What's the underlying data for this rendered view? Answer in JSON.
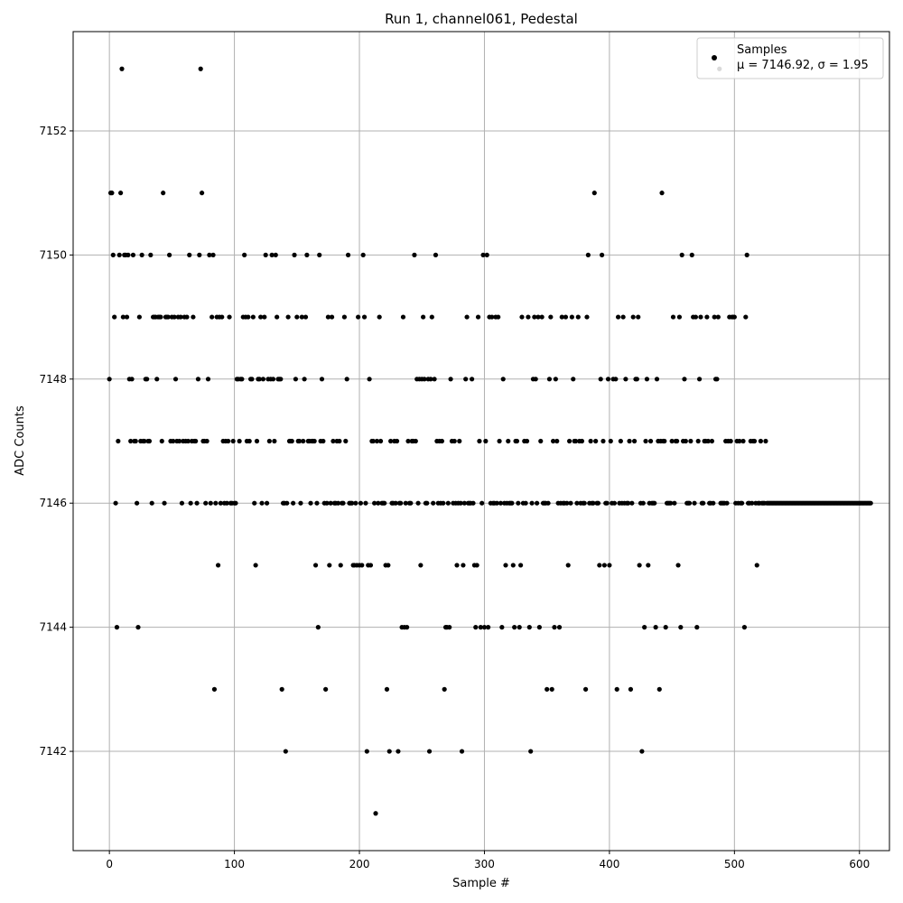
{
  "chart_data": {
    "type": "scatter",
    "title": "Run 1, channel061, Pedestal",
    "xlabel": "Sample #",
    "ylabel": "ADC Counts",
    "xlim": [
      -29,
      624
    ],
    "ylim": [
      7140.4,
      7153.6
    ],
    "x_ticks": [
      0,
      100,
      200,
      300,
      400,
      500,
      600
    ],
    "y_ticks": [
      7142,
      7144,
      7146,
      7148,
      7150,
      7152
    ],
    "grid": true,
    "legend_position": "top-right",
    "marker_color": "#000000",
    "grid_color": "#b0b0b0",
    "legend": {
      "series_name": "Samples",
      "stats_text": "μ = 7146.92, σ = 1.95"
    },
    "series": [
      {
        "name": "Samples",
        "values": [
          7148,
          7151,
          7151,
          7150,
          7149,
          7146,
          7144,
          7147,
          7150,
          7151,
          7153,
          7149,
          7150,
          7150,
          7149,
          7150,
          7148,
          7147,
          7148,
          7150,
          7147,
          7147,
          7146,
          7144,
          7149,
          7147,
          7150,
          7147,
          7147,
          7148,
          7148,
          7147,
          7147,
          7150,
          7146,
          7149,
          7149,
          7149,
          7148,
          7149,
          7149,
          7149,
          7147,
          7151,
          7146,
          7149,
          7149,
          7149,
          7150,
          7147,
          7149,
          7147,
          7149,
          7148,
          7147,
          7149,
          7147,
          7149,
          7146,
          7147,
          7149,
          7147,
          7149,
          7147,
          7150,
          7146,
          7147,
          7149,
          7147,
          7147,
          7146,
          7148,
          7150,
          7153,
          7151,
          7147,
          7147,
          7146,
          7147,
          7148,
          7150,
          7146,
          7149,
          7150,
          7143,
          7146,
          7149,
          7145,
          7149,
          7146,
          7149,
          7147,
          7146,
          7147,
          7146,
          7147,
          7149,
          7146,
          7146,
          7147,
          7146,
          7146,
          7148,
          7148,
          7147,
          7148,
          7148,
          7149,
          7150,
          7149,
          7147,
          7149,
          7147,
          7148,
          7148,
          7149,
          7146,
          7145,
          7147,
          7148,
          7148,
          7149,
          7146,
          7148,
          7149,
          7150,
          7146,
          7148,
          7147,
          7148,
          7150,
          7148,
          7147,
          7150,
          7149,
          7148,
          7148,
          7148,
          7143,
          7146,
          7146,
          7142,
          7146,
          7149,
          7147,
          7147,
          7147,
          7146,
          7150,
          7148,
          7149,
          7147,
          7147,
          7146,
          7149,
          7147,
          7148,
          7149,
          7150,
          7147,
          7147,
          7146,
          7147,
          7147,
          7147,
          7145,
          7146,
          7144,
          7150,
          7147,
          7148,
          7147,
          7146,
          7143,
          7146,
          7149,
          7145,
          7146,
          7149,
          7147,
          7146,
          7146,
          7147,
          7146,
          7147,
          7145,
          7146,
          7146,
          7149,
          7147,
          7148,
          7150,
          7146,
          7146,
          7146,
          7145,
          7145,
          7146,
          7145,
          7149,
          7145,
          7146,
          7145,
          7150,
          7149,
          7146,
          7142,
          7145,
          7148,
          7145,
          7147,
          7147,
          7146,
          7141,
          7147,
          7146,
          7149,
          7147,
          7146,
          7146,
          7146,
          7145,
          7143,
          7145,
          7142,
          7147,
          7146,
          7146,
          7147,
          7146,
          7147,
          7142,
          7146,
          7146,
          7144,
          7149,
          7144,
          7146,
          7144,
          7147,
          7146,
          7146,
          7147,
          7147,
          7150,
          7147,
          7148,
          7146,
          7148,
          7145,
          7148,
          7149,
          7148,
          7146,
          7146,
          7148,
          7142,
          7148,
          7149,
          7146,
          7148,
          7150,
          7147,
          7146,
          7147,
          7146,
          7147,
          7146,
          7143,
          7144,
          7144,
          7146,
          7144,
          7148,
          7147,
          7146,
          7147,
          7146,
          7145,
          7146,
          7147,
          7146,
          7142,
          7145,
          7146,
          7148,
          7149,
          7146,
          7146,
          7146,
          7148,
          7146,
          7145,
          7144,
          7145,
          7149,
          7147,
          7144,
          7146,
          7150,
          7144,
          7147,
          7150,
          7144,
          7149,
          7146,
          7149,
          7146,
          7146,
          7149,
          7146,
          7149,
          7147,
          7146,
          7144,
          7148,
          7146,
          7145,
          7146,
          7147,
          7146,
          7146,
          7146,
          7145,
          7144,
          7147,
          7147,
          7146,
          7144,
          7145,
          7149,
          7146,
          7147,
          7146,
          7147,
          7149,
          7144,
          7142,
          7146,
          7148,
          7149,
          7148,
          7146,
          7149,
          7144,
          7147,
          7149,
          7146,
          7146,
          7146,
          7143,
          7146,
          7148,
          7149,
          7143,
          7147,
          7144,
          7148,
          7147,
          7146,
          7144,
          7146,
          7149,
          7146,
          7146,
          7149,
          7146,
          7145,
          7147,
          7146,
          7149,
          7148,
          7147,
          7147,
          7146,
          7149,
          7147,
          7146,
          7147,
          7146,
          7146,
          7143,
          7149,
          7150,
          7146,
          7147,
          7146,
          7146,
          7151,
          7147,
          7146,
          7146,
          7145,
          7148,
          7150,
          7147,
          7145,
          7146,
          7146,
          7148,
          7145,
          7147,
          7146,
          7148,
          7146,
          7148,
          7143,
          7149,
          7146,
          7147,
          7146,
          7149,
          7146,
          7148,
          7146,
          7146,
          7147,
          7143,
          7146,
          7149,
          7147,
          7148,
          7148,
          7149,
          7145,
          7146,
          7142,
          7146,
          7144,
          7147,
          7148,
          7145,
          7146,
          7147,
          7146,
          7146,
          7146,
          7144,
          7148,
          7147,
          7143,
          7147,
          7151,
          7147,
          7147,
          7144,
          7146,
          7146,
          7146,
          7146,
          7147,
          7149,
          7146,
          7147,
          7147,
          7145,
          7149,
          7144,
          7150,
          7147,
          7148,
          7147,
          7146,
          7146,
          7146,
          7147,
          7150,
          7149,
          7146,
          7149,
          7144,
          7147,
          7148,
          7149,
          7146,
          7146,
          7147,
          7147,
          7149,
          7147,
          7146,
          7146,
          7147,
          7146,
          7149,
          7148,
          7148,
          7149,
          7153,
          7146,
          7146,
          7146,
          7146,
          7147,
          7146,
          7147,
          7149,
          7147,
          7149,
          7149,
          7149,
          7146,
          7147,
          7146,
          7147,
          7146,
          7146,
          7147,
          7144,
          7149,
          7150,
          7146,
          7146,
          7147,
          7146,
          7147,
          7147,
          7146,
          7145,
          7146,
          7146,
          7147,
          7146,
          7146,
          7146,
          7147,
          7146,
          7146,
          7146,
          7146,
          7146,
          7146,
          7146,
          7146,
          7146,
          7146,
          7146,
          7146,
          7146,
          7146,
          7146,
          7146,
          7146,
          7146,
          7146,
          7146,
          7146,
          7146,
          7146,
          7146,
          7146,
          7146,
          7146,
          7146,
          7146,
          7146,
          7146,
          7146,
          7146,
          7146,
          7146,
          7146,
          7146,
          7146,
          7146,
          7146,
          7146,
          7146,
          7146,
          7146,
          7146,
          7146,
          7146,
          7146,
          7146,
          7146,
          7146,
          7146,
          7146,
          7146,
          7146,
          7146,
          7146,
          7146,
          7146,
          7146,
          7146,
          7146,
          7146,
          7146,
          7146,
          7146,
          7146,
          7146,
          7146,
          7146,
          7146,
          7146,
          7146,
          7146,
          7146,
          7146,
          7146,
          7146,
          7146,
          7146,
          7146,
          7146,
          7146,
          7146
        ]
      }
    ]
  }
}
